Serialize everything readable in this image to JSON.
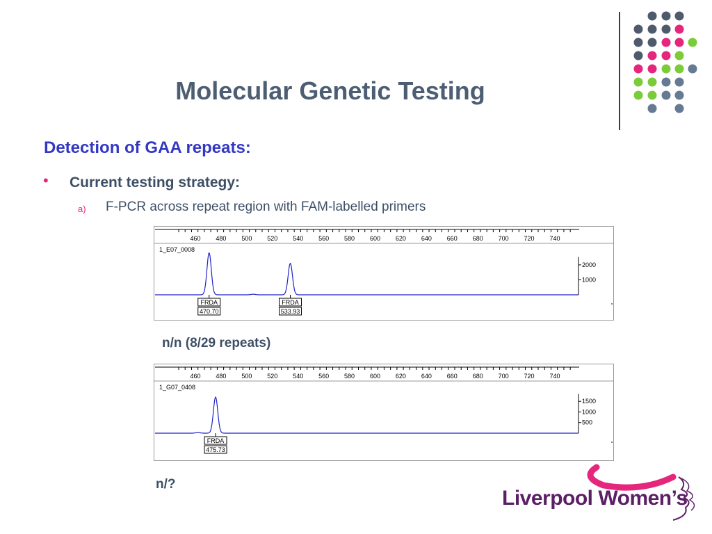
{
  "slide": {
    "title": "Molecular Genetic Testing",
    "subtitle": "Detection of GAA repeats:",
    "bullet": "Current testing strategy:",
    "sub_marker": "a)",
    "sub_text": "F-PCR across repeat region with FAM-labelled primers",
    "caption1": "n/n (8/29 repeats)",
    "caption2": "n/?"
  },
  "logo": {
    "text": "Liverpool Women’s"
  },
  "colors": {
    "title": "#4d5e74",
    "subtitle": "#3338c3",
    "accent_pink": "#e5267d",
    "accent_green": "#7ccc3a",
    "dot_dark": "#4f5b6d",
    "dot_blue": "#667a94",
    "trace": "#1f22c8",
    "logo": "#5b1f66"
  },
  "chart_data": [
    {
      "type": "line",
      "sample_name": "1_E07_0008",
      "xticks": [
        460,
        480,
        500,
        520,
        540,
        560,
        580,
        600,
        620,
        640,
        660,
        680,
        700,
        720,
        740
      ],
      "yticks": [
        1000,
        2000
      ],
      "peaks": [
        {
          "x": 470.7,
          "height": 2800,
          "label": "FRDA",
          "size_label": "470.70"
        },
        {
          "x": 533.93,
          "height": 2100,
          "label": "FRDA",
          "size_label": "533.93"
        }
      ]
    },
    {
      "type": "line",
      "sample_name": "1_G07_0408",
      "xticks": [
        460,
        480,
        500,
        520,
        540,
        560,
        580,
        600,
        620,
        640,
        660,
        680,
        700,
        720,
        740
      ],
      "yticks": [
        500,
        1000,
        1500
      ],
      "peaks": [
        {
          "x": 475.73,
          "height": 1700,
          "label": "FRDA",
          "size_label": "475.73"
        }
      ]
    }
  ]
}
